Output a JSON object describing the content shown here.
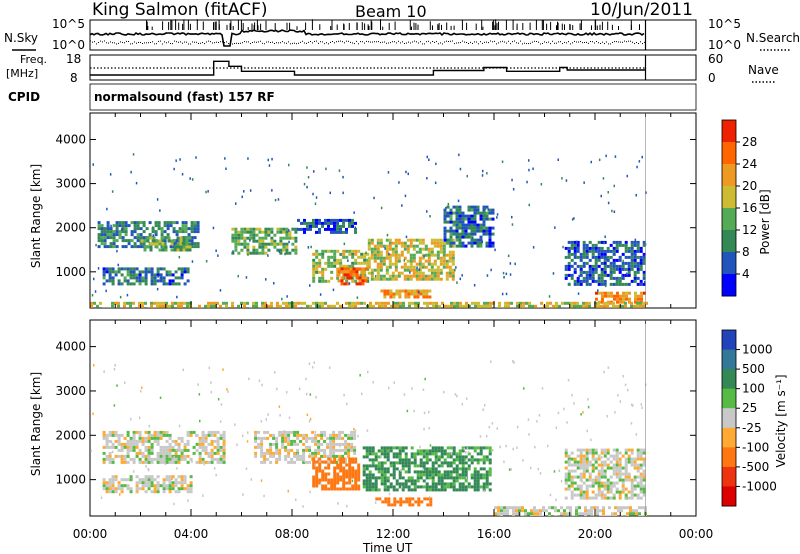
{
  "header": {
    "station": "King Salmon (fitACF)",
    "beam": "Beam 10",
    "date": "10/Jun/2011"
  },
  "top_panels": {
    "nsky": {
      "label": "N.Sky",
      "left_tick_top": "10^5",
      "left_tick_bottom": "10^0",
      "right_tick_top": "10^5",
      "right_tick_bottom": "10^0",
      "right_label": "N.Search"
    },
    "freq": {
      "label_line1": "Freq.",
      "label_line2": "[MHz]",
      "left_tick_top": "18",
      "left_tick_bottom": "8",
      "right_tick_top": "60",
      "right_tick_bottom": "0",
      "right_label": "Nave",
      "freq_steps": [
        {
          "from": 0,
          "to": 4.9,
          "level": 0.2
        },
        {
          "from": 4.9,
          "to": 5.5,
          "level": 0.75
        },
        {
          "from": 5.5,
          "to": 6.0,
          "level": 0.55
        },
        {
          "from": 6.0,
          "to": 8.1,
          "level": 0.35
        },
        {
          "from": 8.1,
          "to": 13.6,
          "level": 0.2
        },
        {
          "from": 13.6,
          "to": 15.6,
          "level": 0.38
        },
        {
          "from": 15.6,
          "to": 16.5,
          "level": 0.5
        },
        {
          "from": 16.5,
          "to": 18.6,
          "level": 0.35
        },
        {
          "from": 18.6,
          "to": 18.9,
          "level": 0.5
        },
        {
          "from": 18.9,
          "to": 22.0,
          "level": 0.4
        }
      ]
    },
    "cpid": {
      "label": "CPID",
      "program": "normalsound (fast) 157 RF"
    }
  },
  "axes": {
    "ylabel": "Slant Range [km]",
    "yticks": [
      "1000",
      "2000",
      "3000",
      "4000"
    ],
    "xticks": [
      "00:00",
      "04:00",
      "08:00",
      "12:00",
      "16:00",
      "20:00",
      "00:00"
    ],
    "xlabel": "Time UT",
    "xlim": [
      0,
      24
    ],
    "ylim": [
      180,
      4600
    ],
    "data_end_hour": 22.0
  },
  "colorbars": {
    "power": {
      "label": "Power [dB]",
      "ticks": [
        "4",
        "8",
        "12",
        "16",
        "20",
        "24",
        "28"
      ],
      "colors": [
        "#0000ff",
        "#2255bb",
        "#338855",
        "#55aa55",
        "#ccbb33",
        "#ee9922",
        "#ff6600",
        "#ee2200"
      ]
    },
    "velocity": {
      "label": "Velocity [m s⁻¹]",
      "ticks": [
        "1000",
        "500",
        "100",
        "25",
        "-25",
        "-100",
        "-500",
        "-1000"
      ],
      "colors": [
        "#2244bb",
        "#337799",
        "#338855",
        "#55bb44",
        "#c8c8c8",
        "#ffaa33",
        "#ff7711",
        "#ee3311",
        "#dd0000"
      ]
    }
  },
  "chart_data": [
    {
      "type": "heatmap",
      "title": "Power [dB]",
      "xlabel": "Time UT",
      "ylabel": "Slant Range [km]",
      "xlim": [
        0,
        24
      ],
      "ylim": [
        180,
        4600
      ],
      "regions": [
        {
          "t0": 0.3,
          "t1": 4.3,
          "r0": 1550,
          "r1": 2150,
          "value": 9
        },
        {
          "t0": 0.5,
          "t1": 3.9,
          "r0": 700,
          "r1": 1100,
          "value": 8
        },
        {
          "t0": 2.0,
          "t1": 4.0,
          "r0": 1500,
          "r1": 1800,
          "value": 14
        },
        {
          "t0": 5.6,
          "t1": 8.1,
          "r0": 1400,
          "r1": 2000,
          "value": 13
        },
        {
          "t0": 8.2,
          "t1": 10.5,
          "r0": 1900,
          "r1": 2200,
          "value": 6
        },
        {
          "t0": 8.8,
          "t1": 11.0,
          "r0": 800,
          "r1": 1500,
          "value": 16
        },
        {
          "t0": 9.8,
          "t1": 10.9,
          "r0": 700,
          "r1": 1100,
          "value": 25
        },
        {
          "t0": 11.0,
          "t1": 14.4,
          "r0": 800,
          "r1": 1750,
          "value": 18
        },
        {
          "t0": 11.5,
          "t1": 13.5,
          "r0": 450,
          "r1": 600,
          "value": 22
        },
        {
          "t0": 14.0,
          "t1": 16.0,
          "r0": 1600,
          "r1": 2500,
          "value": 8
        },
        {
          "t0": 18.8,
          "t1": 22.0,
          "r0": 700,
          "r1": 1700,
          "value": 7
        },
        {
          "t0": 20.0,
          "t1": 22.0,
          "r0": 300,
          "r1": 550,
          "value": 24
        },
        {
          "t0": 0.0,
          "t1": 22.0,
          "r0": 180,
          "r1": 320,
          "value": 18
        }
      ]
    },
    {
      "type": "heatmap",
      "title": "Velocity [m s⁻¹]",
      "xlabel": "Time UT",
      "ylabel": "Slant Range [km]",
      "xlim": [
        0,
        24
      ],
      "ylim": [
        180,
        4600
      ],
      "regions": [
        {
          "t0": 0.5,
          "t1": 5.3,
          "r0": 1400,
          "r1": 2100,
          "value": 0
        },
        {
          "t0": 0.5,
          "t1": 4.0,
          "r0": 700,
          "r1": 1100,
          "value": 0
        },
        {
          "t0": 6.5,
          "t1": 10.5,
          "r0": 1400,
          "r1": 2100,
          "value": 0
        },
        {
          "t0": 8.8,
          "t1": 10.7,
          "r0": 800,
          "r1": 1500,
          "value": -300
        },
        {
          "t0": 10.8,
          "t1": 15.8,
          "r0": 750,
          "r1": 1750,
          "value": 120
        },
        {
          "t0": 11.3,
          "t1": 13.5,
          "r0": 450,
          "r1": 600,
          "value": -300
        },
        {
          "t0": 18.8,
          "t1": 22.0,
          "r0": 600,
          "r1": 1700,
          "value": 0
        },
        {
          "t0": 16.0,
          "t1": 22.0,
          "r0": 180,
          "r1": 400,
          "value": 0
        }
      ]
    }
  ]
}
